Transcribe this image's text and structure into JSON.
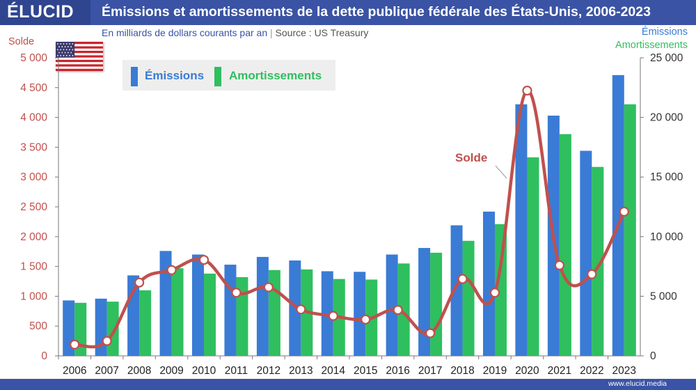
{
  "brand": {
    "logo_text": "ÉLUCID",
    "website": "www.elucid.media"
  },
  "header": {
    "title": "Émissions et amortissements de la dette publique fédérale des États-Unis, 2006-2023",
    "subtitle": "En milliards de dollars courants par an",
    "separator": "|",
    "source": "Source : US Treasury"
  },
  "colors": {
    "emissions": "#3a7bd5",
    "amortissements": "#2fbf5f",
    "solde": "#c0504d",
    "header_bar": "#3a53a4"
  },
  "icons": {
    "flag": "us-flag-icon"
  },
  "chart_data": {
    "type": "bar",
    "categories": [
      "2006",
      "2007",
      "2008",
      "2009",
      "2010",
      "2011",
      "2012",
      "2013",
      "2014",
      "2015",
      "2016",
      "2017",
      "2018",
      "2019",
      "2020",
      "2021",
      "2022",
      "2023"
    ],
    "series": [
      {
        "name": "Émissions",
        "axis": "right",
        "type": "bar",
        "values": [
          4650,
          4800,
          6750,
          8800,
          8500,
          7650,
          8300,
          8000,
          7100,
          7050,
          8500,
          9050,
          10950,
          12100,
          21100,
          20150,
          17200,
          23550
        ]
      },
      {
        "name": "Amortissements",
        "axis": "right",
        "type": "bar",
        "values": [
          4450,
          4550,
          5500,
          7350,
          6900,
          6600,
          7200,
          7250,
          6450,
          6400,
          7750,
          8650,
          9650,
          11050,
          16650,
          18600,
          15850,
          21100
        ]
      },
      {
        "name": "Solde",
        "axis": "left",
        "type": "line",
        "values": [
          190,
          250,
          1230,
          1440,
          1610,
          1060,
          1150,
          780,
          670,
          610,
          770,
          380,
          1290,
          1060,
          4450,
          1520,
          1370,
          2420
        ]
      }
    ],
    "left_axis": {
      "label": "Solde",
      "ylim": [
        0,
        5000
      ],
      "ticks": [
        {
          "v": 0,
          "label": "0"
        },
        {
          "v": 500,
          "label": "500"
        },
        {
          "v": 1000,
          "label": "1 000"
        },
        {
          "v": 1500,
          "label": "1 500"
        },
        {
          "v": 2000,
          "label": "2 000"
        },
        {
          "v": 2500,
          "label": "2 500"
        },
        {
          "v": 3000,
          "label": "3 000"
        },
        {
          "v": 3500,
          "label": "3 500"
        },
        {
          "v": 4000,
          "label": "4 000"
        },
        {
          "v": 4500,
          "label": "4 500"
        },
        {
          "v": 5000,
          "label": "5 000"
        }
      ]
    },
    "right_axis": {
      "label_1": "Émissions",
      "label_2": "Amortissements",
      "ylim": [
        0,
        25000
      ],
      "ticks": [
        {
          "v": 0,
          "label": "0"
        },
        {
          "v": 5000,
          "label": "5 000"
        },
        {
          "v": 10000,
          "label": "10 000"
        },
        {
          "v": 15000,
          "label": "15 000"
        },
        {
          "v": 20000,
          "label": "20 000"
        },
        {
          "v": 25000,
          "label": "25 000"
        }
      ]
    },
    "legend": {
      "position": "top-left",
      "items": [
        "Émissions",
        "Amortissements"
      ]
    },
    "annotation": {
      "text": "Solde"
    },
    "grid": false
  }
}
